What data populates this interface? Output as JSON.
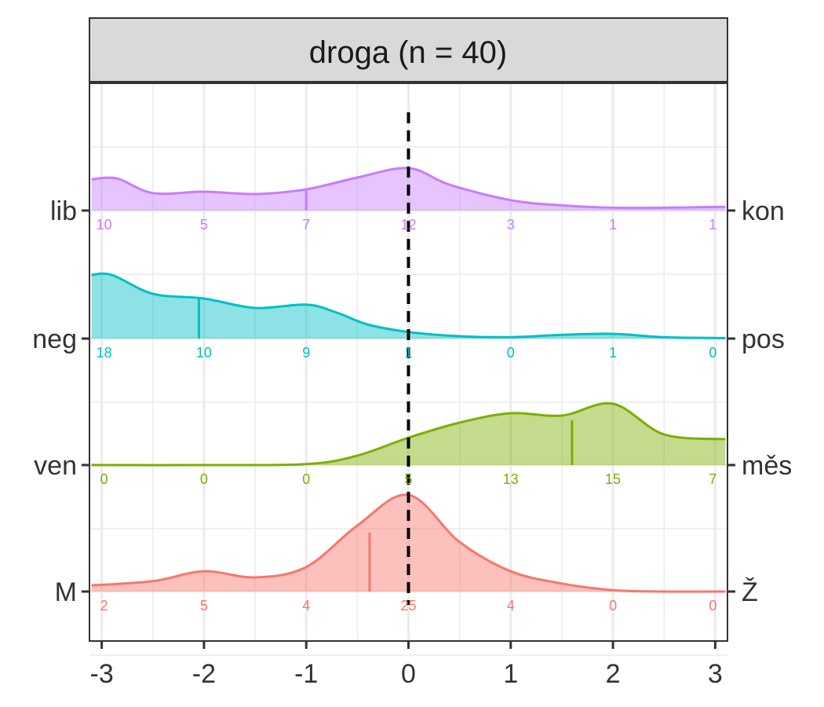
{
  "chart_data": {
    "type": "ridgeline",
    "title": "droga (n = 40)",
    "xlim": [
      -3,
      3
    ],
    "x_ticks": [
      -3,
      -2,
      -1,
      0,
      1,
      2,
      3
    ],
    "x_tick_labels": [
      "-3",
      "-2",
      "-1",
      "0",
      "1",
      "2",
      "3"
    ],
    "reference_line_x": 0,
    "grid": true,
    "series": [
      {
        "left_label": "lib",
        "right_label": "kon",
        "color": "#C77CFF",
        "mean": -1.0,
        "counts": [
          "10",
          "5",
          "7",
          "12",
          "3",
          "1",
          "1"
        ],
        "density_x": [
          -3.1,
          -2.85,
          -2.5,
          -2.0,
          -1.5,
          -1.0,
          -0.5,
          0.0,
          0.4,
          1.0,
          1.5,
          2.0,
          2.5,
          3.1
        ],
        "density_y": [
          0.66,
          0.68,
          0.37,
          0.4,
          0.35,
          0.45,
          0.7,
          0.9,
          0.55,
          0.22,
          0.11,
          0.06,
          0.06,
          0.08
        ]
      },
      {
        "left_label": "neg",
        "right_label": "pos",
        "color": "#00BFC4",
        "mean": -2.05,
        "counts": [
          "18",
          "10",
          "9",
          "1",
          "0",
          "1",
          "0"
        ],
        "density_x": [
          -3.1,
          -2.9,
          -2.5,
          -2.0,
          -1.5,
          -1.0,
          -0.7,
          -0.4,
          0.0,
          0.5,
          1.0,
          1.5,
          2.0,
          2.5,
          3.1
        ],
        "density_y": [
          1.35,
          1.35,
          0.95,
          0.85,
          0.65,
          0.72,
          0.55,
          0.3,
          0.14,
          0.05,
          0.03,
          0.08,
          0.1,
          0.03,
          0.01
        ],
        "mean_height": 0.85
      },
      {
        "left_label": "ven",
        "right_label": "měs",
        "color": "#7CAE00",
        "mean": 1.6,
        "counts": [
          "0",
          "0",
          "0",
          "5",
          "13",
          "15",
          "7"
        ],
        "density_x": [
          -3.1,
          -2.0,
          -1.0,
          -0.5,
          0.0,
          0.5,
          1.0,
          1.5,
          2.0,
          2.5,
          3.1
        ],
        "density_y": [
          0.0,
          0.0,
          0.02,
          0.2,
          0.58,
          0.9,
          1.1,
          1.05,
          1.3,
          0.65,
          0.55
        ],
        "mean_height": 0.95
      },
      {
        "left_label": "M",
        "right_label": "Ž",
        "color": "#F8766D",
        "mean": -0.38,
        "counts": [
          "2",
          "5",
          "4",
          "25",
          "4",
          "0",
          "0"
        ],
        "density_x": [
          -3.1,
          -2.5,
          -2.0,
          -1.5,
          -1.0,
          -0.5,
          0.0,
          0.5,
          1.0,
          1.5,
          2.0,
          2.5,
          3.1
        ],
        "density_y": [
          0.13,
          0.22,
          0.43,
          0.3,
          0.52,
          1.4,
          2.05,
          1.05,
          0.43,
          0.17,
          0.03,
          0.0,
          0.0
        ],
        "mean_height": 1.25
      }
    ]
  }
}
